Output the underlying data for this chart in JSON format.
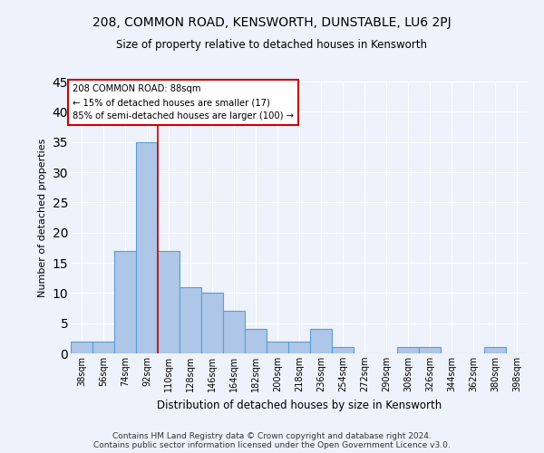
{
  "title": "208, COMMON ROAD, KENSWORTH, DUNSTABLE, LU6 2PJ",
  "subtitle": "Size of property relative to detached houses in Kensworth",
  "xlabel": "Distribution of detached houses by size in Kensworth",
  "ylabel": "Number of detached properties",
  "bar_labels": [
    "38sqm",
    "56sqm",
    "74sqm",
    "92sqm",
    "110sqm",
    "128sqm",
    "146sqm",
    "164sqm",
    "182sqm",
    "200sqm",
    "218sqm",
    "236sqm",
    "254sqm",
    "272sqm",
    "290sqm",
    "308sqm",
    "326sqm",
    "344sqm",
    "362sqm",
    "380sqm",
    "398sqm"
  ],
  "bar_values": [
    2,
    2,
    17,
    35,
    17,
    11,
    10,
    7,
    4,
    2,
    2,
    4,
    1,
    0,
    0,
    1,
    1,
    0,
    0,
    1,
    0
  ],
  "bar_color": "#aec6e8",
  "bar_edge_color": "#5a9fd4",
  "ylim": [
    0,
    45
  ],
  "yticks": [
    0,
    5,
    10,
    15,
    20,
    25,
    30,
    35,
    40,
    45
  ],
  "vline_x": 3.5,
  "annotation_title": "208 COMMON ROAD: 88sqm",
  "annotation_line1": "← 15% of detached houses are smaller (17)",
  "annotation_line2": "85% of semi-detached houses are larger (100) →",
  "footer1": "Contains HM Land Registry data © Crown copyright and database right 2024.",
  "footer2": "Contains public sector information licensed under the Open Government Licence v3.0.",
  "bg_color": "#eef2fb",
  "grid_color": "#ffffff",
  "annotation_box_color": "#ffffff",
  "annotation_box_edge": "#cc0000",
  "vline_color": "#cc0000"
}
